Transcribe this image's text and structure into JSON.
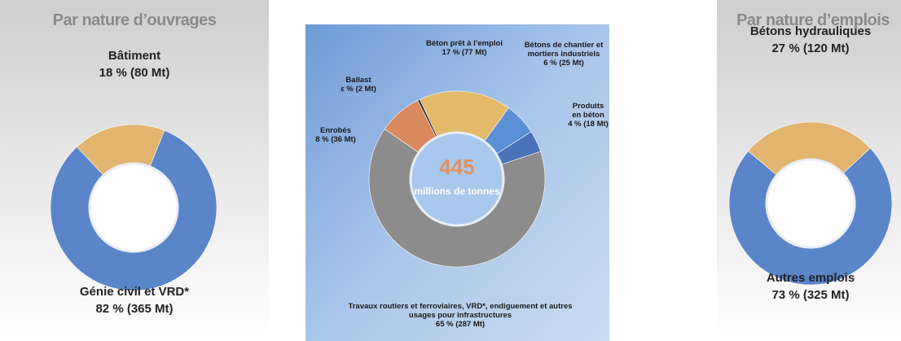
{
  "chart_data": [
    {
      "type": "pie",
      "donut": true,
      "title": "Par nature d’ouvrages",
      "categories": [
        "Bâtiment",
        "Génie civil et VRD*"
      ],
      "values": [
        18,
        82
      ],
      "value_labels": [
        "18 % (80 Mt)",
        "82 % (365 Mt)"
      ],
      "colors": [
        "#e2b46e",
        "#5a85c8"
      ]
    },
    {
      "type": "pie",
      "donut": true,
      "center_label": "445",
      "center_sublabel": "millions de tonnes",
      "categories": [
        "Béton prêt à l’emploi",
        "Bétons de chantier et mortiers industriels",
        "Produits en béton",
        "Travaux routiers et ferroviaires, VRD*, endiguement et autres usages pour infrastructures",
        "Enrobés",
        "Ballast"
      ],
      "values": [
        17,
        6,
        4,
        65,
        8,
        0.45
      ],
      "value_labels": [
        "17 % (77 Mt)",
        "6 % (25 Mt)",
        "4 % (18 Mt)",
        "65 % (287 Mt)",
        "8 % (36 Mt)",
        "ε % (2 Mt)"
      ],
      "colors": [
        "#e3b96a",
        "#5b8fd6",
        "#4a72b8",
        "#8c8c8c",
        "#d9895e",
        "#333333"
      ]
    },
    {
      "type": "pie",
      "donut": true,
      "title": "Par nature d’emplois",
      "categories": [
        "Bétons hydrauliques",
        "Autres emplois"
      ],
      "values": [
        27,
        73
      ],
      "value_labels": [
        "27 % (120 Mt)",
        "73 % (325 Mt)"
      ],
      "colors": [
        "#e2b46e",
        "#5a85c8"
      ]
    }
  ]
}
